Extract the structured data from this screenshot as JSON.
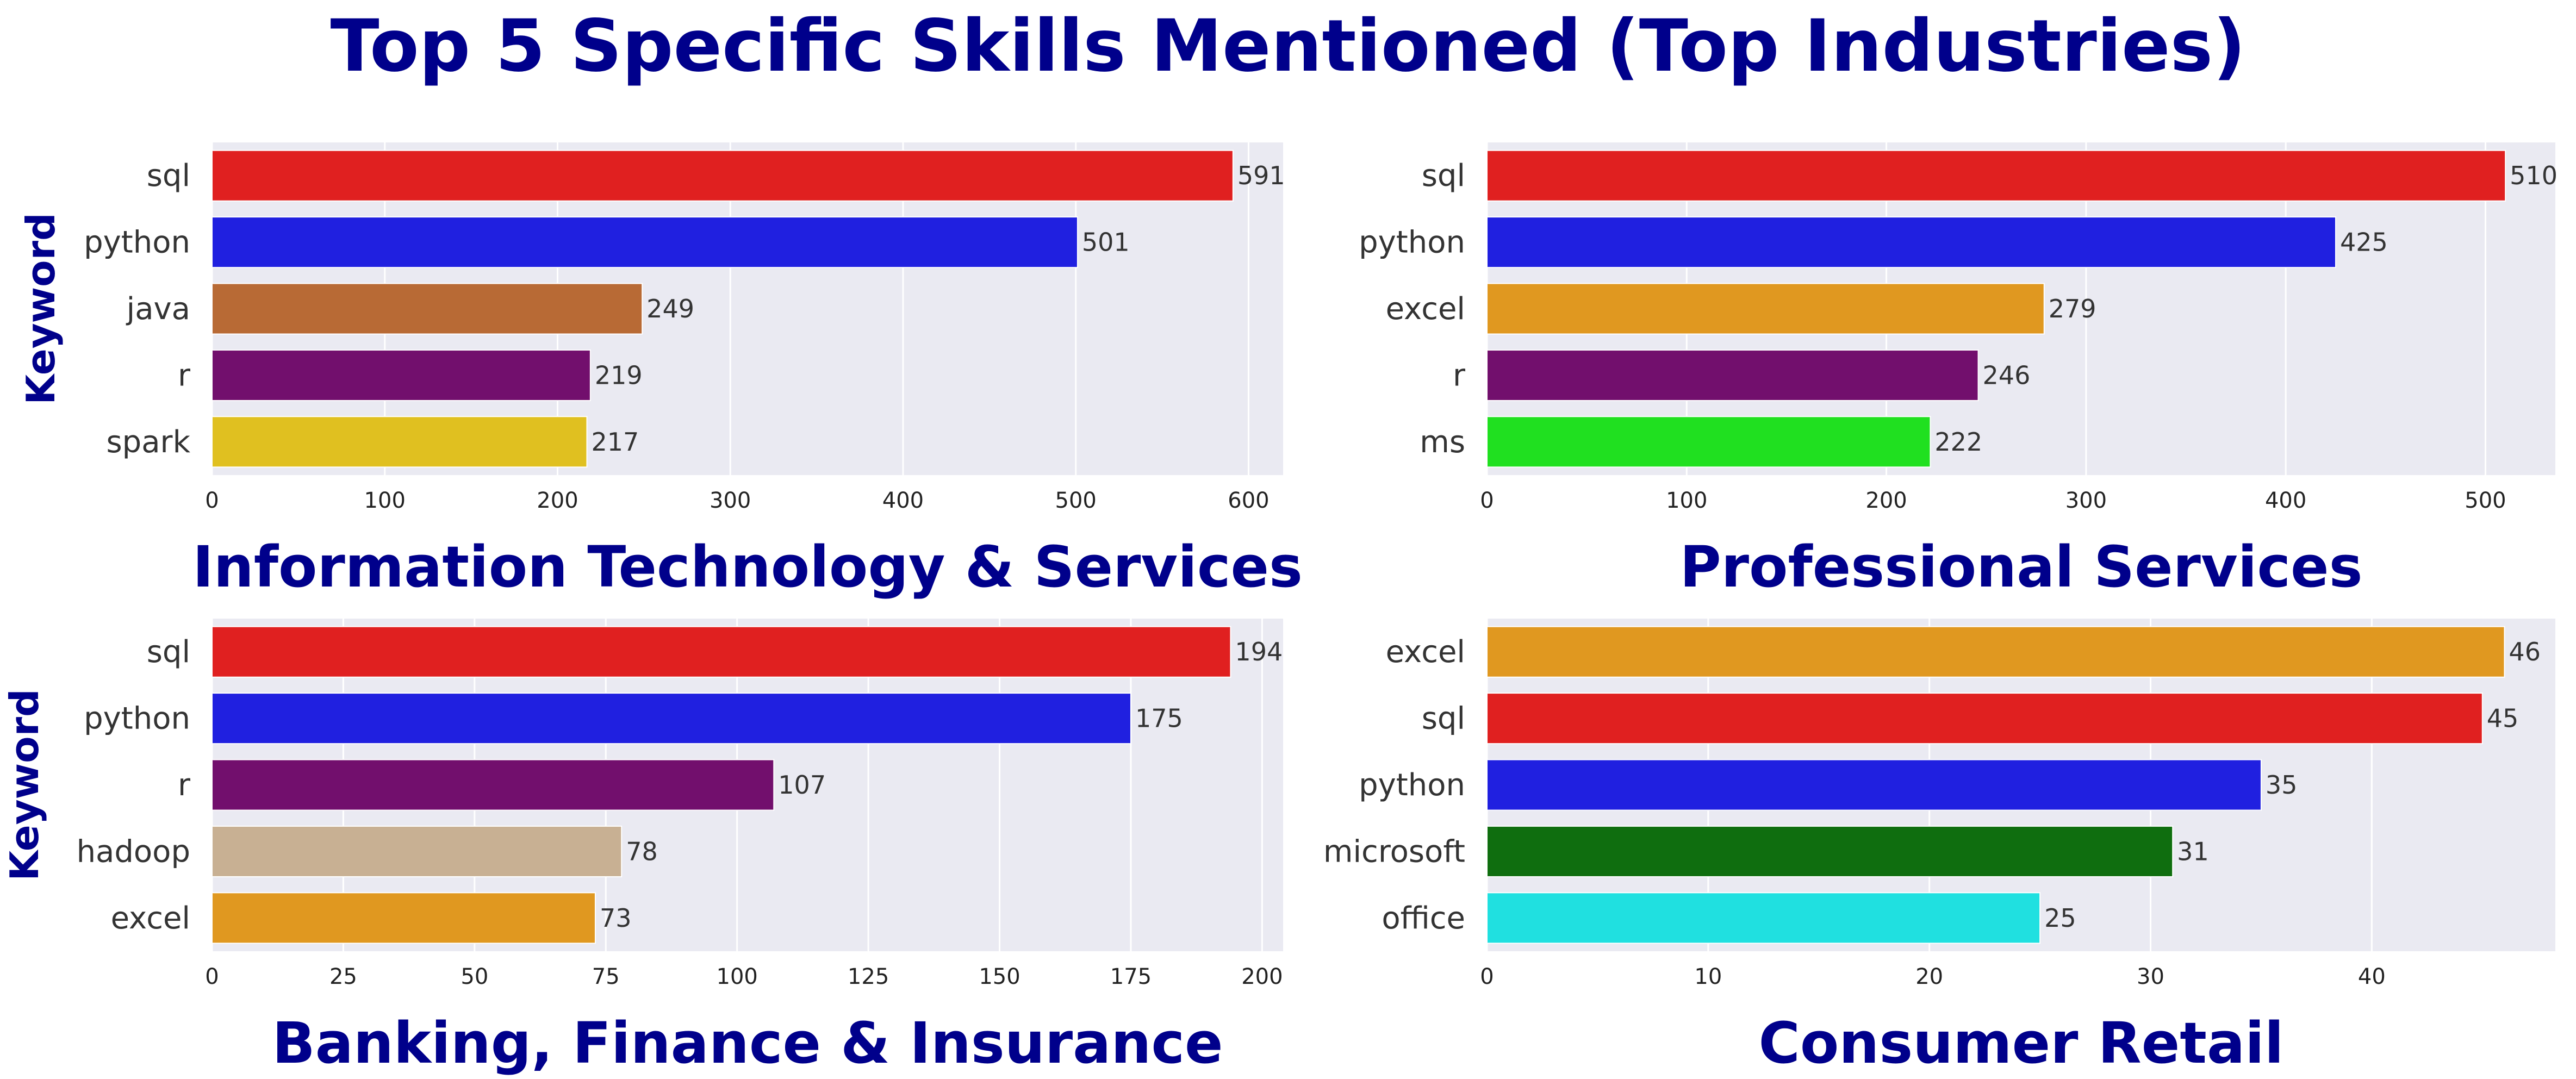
{
  "title": "Top 5 Specific Skills Mentioned (Top Industries)",
  "chart_data": [
    {
      "type": "bar",
      "orientation": "horizontal",
      "xlabel": "Information Technology & Services",
      "ylabel": "Keyword",
      "categories": [
        "sql",
        "python",
        "java",
        "r",
        "spark"
      ],
      "values": [
        591,
        501,
        249,
        219,
        217
      ],
      "colors": [
        "#e02020",
        "#2020e0",
        "#b86a35",
        "#720f6d",
        "#e0c020"
      ],
      "xlim": [
        0,
        620
      ],
      "xticks": [
        0,
        100,
        200,
        300,
        400,
        500,
        600
      ],
      "grid": true
    },
    {
      "type": "bar",
      "orientation": "horizontal",
      "xlabel": "Professional Services",
      "ylabel": "",
      "categories": [
        "sql",
        "python",
        "excel",
        "r",
        "ms"
      ],
      "values": [
        510,
        425,
        279,
        246,
        222
      ],
      "colors": [
        "#e02020",
        "#2020e0",
        "#e09820",
        "#720f6d",
        "#20e020"
      ],
      "xlim": [
        0,
        535
      ],
      "xticks": [
        0,
        100,
        200,
        300,
        400,
        500
      ],
      "grid": true
    },
    {
      "type": "bar",
      "orientation": "horizontal",
      "xlabel": "Banking, Finance & Insurance",
      "ylabel": "Keyword",
      "categories": [
        "sql",
        "python",
        "r",
        "hadoop",
        "excel"
      ],
      "values": [
        194,
        175,
        107,
        78,
        73
      ],
      "colors": [
        "#e02020",
        "#2020e0",
        "#720f6d",
        "#c8b093",
        "#e09820"
      ],
      "xlim": [
        0,
        204
      ],
      "xticks": [
        0,
        25,
        50,
        75,
        100,
        125,
        150,
        175,
        200
      ],
      "grid": true
    },
    {
      "type": "bar",
      "orientation": "horizontal",
      "xlabel": "Consumer Retail",
      "ylabel": "",
      "categories": [
        "excel",
        "sql",
        "python",
        "microsoft",
        "office"
      ],
      "values": [
        46,
        45,
        35,
        31,
        25
      ],
      "colors": [
        "#e09820",
        "#e02020",
        "#2020e0",
        "#0f6e0f",
        "#20e0e0"
      ],
      "xlim": [
        0,
        48.3
      ],
      "xticks": [
        0,
        10,
        20,
        30,
        40
      ],
      "grid": true
    }
  ]
}
